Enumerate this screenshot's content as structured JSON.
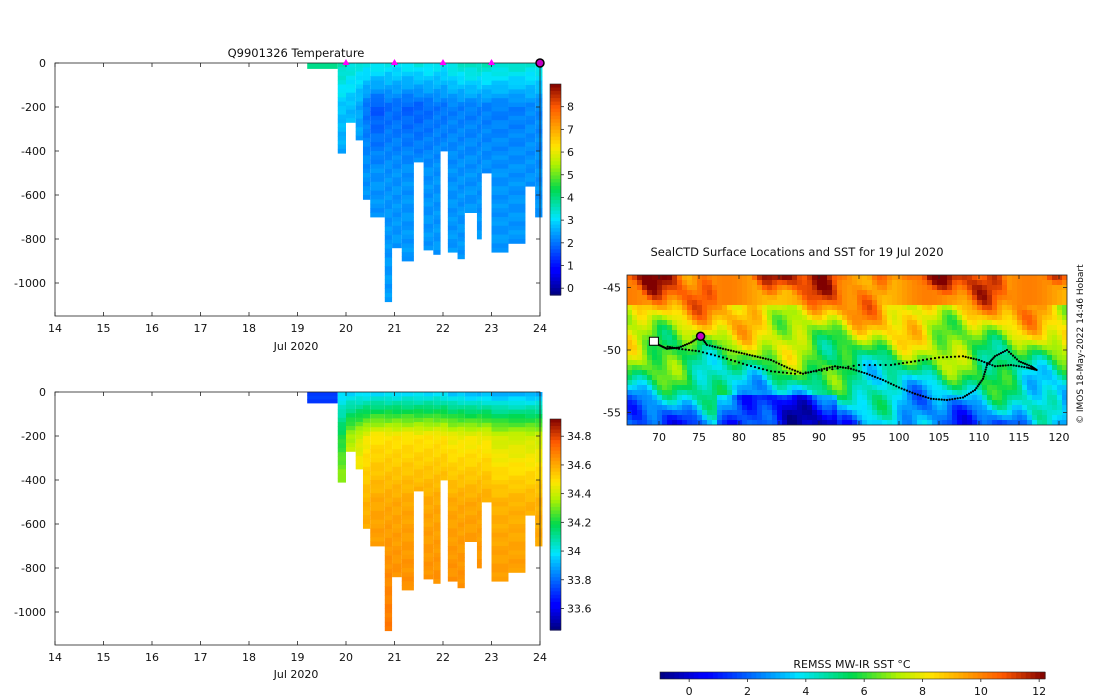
{
  "chart_data": [
    {
      "type": "heatmap",
      "title": "Q9901326  Temperature",
      "xlabel": "Jul 2020",
      "ylabel": "",
      "xlim": [
        14,
        24
      ],
      "ylim": [
        -1150,
        0
      ],
      "x_ticks": [
        14,
        15,
        16,
        17,
        18,
        19,
        20,
        21,
        22,
        23,
        24
      ],
      "y_ticks": [
        0,
        -200,
        -400,
        -600,
        -800,
        -1000
      ],
      "colorbar": {
        "range": [
          -0.3,
          9
        ],
        "ticks": [
          0,
          1,
          2,
          3,
          4,
          5,
          6,
          7,
          8
        ]
      },
      "profile_markers_x": [
        20,
        21,
        22,
        23
      ],
      "current_profile_x": 24,
      "surface_value": 3.9,
      "profiles": [
        {
          "x0": 19.2,
          "x1": 19.83,
          "depth": 25,
          "temp": [
            3.9,
            3.9,
            3.9,
            3.9
          ]
        },
        {
          "x0": 19.83,
          "x1": 20.0,
          "depth": 410,
          "temp": [
            3.6,
            2.8,
            2.4,
            2.4
          ]
        },
        {
          "x0": 20.0,
          "x1": 20.2,
          "depth": 270,
          "temp": [
            3.4,
            2.7,
            2.5,
            2.5
          ]
        },
        {
          "x0": 20.2,
          "x1": 20.35,
          "depth": 350,
          "temp": [
            3.3,
            2.5,
            2.4,
            2.4
          ]
        },
        {
          "x0": 20.35,
          "x1": 20.5,
          "depth": 620,
          "temp": [
            3.3,
            2.0,
            2.3,
            2.4
          ]
        },
        {
          "x0": 20.5,
          "x1": 20.8,
          "depth": 700,
          "temp": [
            3.3,
            1.7,
            2.3,
            2.4
          ]
        },
        {
          "x0": 20.8,
          "x1": 20.95,
          "depth": 1085,
          "temp": [
            3.2,
            1.9,
            2.3,
            2.4
          ]
        },
        {
          "x0": 20.95,
          "x1": 21.15,
          "depth": 840,
          "temp": [
            3.2,
            1.9,
            2.3,
            2.4
          ]
        },
        {
          "x0": 21.15,
          "x1": 21.4,
          "depth": 900,
          "temp": [
            3.2,
            1.8,
            2.3,
            2.4
          ]
        },
        {
          "x0": 21.4,
          "x1": 21.6,
          "depth": 450,
          "temp": [
            3.3,
            1.8,
            2.3,
            2.4
          ]
        },
        {
          "x0": 21.6,
          "x1": 21.8,
          "depth": 850,
          "temp": [
            3.3,
            1.9,
            2.3,
            2.4
          ]
        },
        {
          "x0": 21.8,
          "x1": 21.95,
          "depth": 870,
          "temp": [
            3.2,
            2.0,
            2.3,
            2.4
          ]
        },
        {
          "x0": 21.95,
          "x1": 22.1,
          "depth": 400,
          "temp": [
            3.2,
            2.0,
            2.3,
            2.4
          ]
        },
        {
          "x0": 22.1,
          "x1": 22.3,
          "depth": 860,
          "temp": [
            3.4,
            2.1,
            2.3,
            2.4
          ]
        },
        {
          "x0": 22.3,
          "x1": 22.45,
          "depth": 890,
          "temp": [
            3.5,
            2.1,
            2.3,
            2.4
          ]
        },
        {
          "x0": 22.45,
          "x1": 22.7,
          "depth": 680,
          "temp": [
            3.6,
            2.1,
            2.3,
            2.4
          ]
        },
        {
          "x0": 22.7,
          "x1": 22.8,
          "depth": 800,
          "temp": [
            3.6,
            2.1,
            2.3,
            2.4
          ]
        },
        {
          "x0": 22.8,
          "x1": 23.0,
          "depth": 500,
          "temp": [
            3.6,
            2.1,
            2.3,
            2.4
          ]
        },
        {
          "x0": 23.0,
          "x1": 23.35,
          "depth": 860,
          "temp": [
            3.5,
            2.1,
            2.3,
            2.4
          ]
        },
        {
          "x0": 23.35,
          "x1": 23.7,
          "depth": 820,
          "temp": [
            3.5,
            2.1,
            2.3,
            2.4
          ]
        },
        {
          "x0": 23.7,
          "x1": 23.9,
          "depth": 560,
          "temp": [
            3.4,
            2.2,
            2.3,
            2.4
          ]
        },
        {
          "x0": 23.9,
          "x1": 24.05,
          "depth": 700,
          "temp": [
            3.4,
            2.2,
            2.3,
            2.4
          ]
        }
      ]
    },
    {
      "type": "heatmap",
      "title": "",
      "xlabel": "Jul 2020",
      "ylabel": "",
      "xlim": [
        14,
        24
      ],
      "ylim": [
        -1150,
        0
      ],
      "x_ticks": [
        14,
        15,
        16,
        17,
        18,
        19,
        20,
        21,
        22,
        23,
        24
      ],
      "y_ticks": [
        0,
        -200,
        -400,
        -600,
        -800,
        -1000
      ],
      "colorbar": {
        "range": [
          33.45,
          34.92
        ],
        "ticks": [
          33.6,
          33.8,
          34,
          34.2,
          34.4,
          34.6,
          34.8
        ]
      },
      "surface_value": 33.83,
      "profiles": [
        {
          "x0": 19.2,
          "x1": 19.83,
          "depth": 50,
          "sal": [
            33.72,
            33.72,
            33.72,
            33.72
          ]
        },
        {
          "x0": 19.83,
          "x1": 20.0,
          "depth": 410,
          "sal": [
            33.95,
            34.2,
            34.4,
            34.4
          ]
        },
        {
          "x0": 20.0,
          "x1": 20.2,
          "depth": 270,
          "sal": [
            33.95,
            34.35,
            34.5,
            34.6
          ]
        },
        {
          "x0": 20.2,
          "x1": 20.35,
          "depth": 350,
          "sal": [
            33.95,
            34.4,
            34.55,
            34.62
          ]
        },
        {
          "x0": 20.35,
          "x1": 20.5,
          "depth": 620,
          "sal": [
            33.95,
            34.45,
            34.58,
            34.65
          ]
        },
        {
          "x0": 20.5,
          "x1": 20.8,
          "depth": 700,
          "sal": [
            33.95,
            34.48,
            34.6,
            34.68
          ]
        },
        {
          "x0": 20.8,
          "x1": 20.95,
          "depth": 1085,
          "sal": [
            33.95,
            34.48,
            34.6,
            34.7
          ]
        },
        {
          "x0": 20.95,
          "x1": 21.15,
          "depth": 840,
          "sal": [
            33.95,
            34.48,
            34.6,
            34.68
          ]
        },
        {
          "x0": 21.15,
          "x1": 21.4,
          "depth": 900,
          "sal": [
            33.95,
            34.48,
            34.6,
            34.68
          ]
        },
        {
          "x0": 21.4,
          "x1": 21.6,
          "depth": 450,
          "sal": [
            33.95,
            34.48,
            34.6,
            34.68
          ]
        },
        {
          "x0": 21.6,
          "x1": 21.8,
          "depth": 850,
          "sal": [
            33.95,
            34.48,
            34.6,
            34.68
          ]
        },
        {
          "x0": 21.8,
          "x1": 21.95,
          "depth": 870,
          "sal": [
            33.95,
            34.48,
            34.6,
            34.68
          ]
        },
        {
          "x0": 21.95,
          "x1": 22.1,
          "depth": 400,
          "sal": [
            33.95,
            34.48,
            34.6,
            34.68
          ]
        },
        {
          "x0": 22.1,
          "x1": 22.3,
          "depth": 860,
          "sal": [
            33.92,
            34.45,
            34.6,
            34.68
          ]
        },
        {
          "x0": 22.3,
          "x1": 22.45,
          "depth": 890,
          "sal": [
            33.92,
            34.45,
            34.6,
            34.68
          ]
        },
        {
          "x0": 22.45,
          "x1": 22.7,
          "depth": 680,
          "sal": [
            33.9,
            34.45,
            34.6,
            34.68
          ]
        },
        {
          "x0": 22.7,
          "x1": 22.8,
          "depth": 800,
          "sal": [
            33.9,
            34.45,
            34.6,
            34.68
          ]
        },
        {
          "x0": 22.8,
          "x1": 23.0,
          "depth": 500,
          "sal": [
            33.9,
            34.45,
            34.6,
            34.68
          ]
        },
        {
          "x0": 23.0,
          "x1": 23.35,
          "depth": 860,
          "sal": [
            33.88,
            34.4,
            34.58,
            34.66
          ]
        },
        {
          "x0": 23.35,
          "x1": 23.7,
          "depth": 820,
          "sal": [
            33.88,
            34.4,
            34.58,
            34.66
          ]
        },
        {
          "x0": 23.7,
          "x1": 23.9,
          "depth": 560,
          "sal": [
            33.88,
            34.4,
            34.58,
            34.66
          ]
        },
        {
          "x0": 23.9,
          "x1": 24.05,
          "depth": 700,
          "sal": [
            33.88,
            34.4,
            34.58,
            34.66
          ]
        }
      ]
    },
    {
      "type": "heatmap",
      "title": "SealCTD Surface Locations and SST for 19 Jul 2020",
      "xlabel": "",
      "ylabel": "",
      "xlim": [
        66,
        121
      ],
      "ylim": [
        -56,
        -44
      ],
      "x_ticks": [
        70,
        75,
        80,
        85,
        90,
        95,
        100,
        105,
        110,
        115,
        120
      ],
      "y_ticks": [
        -45,
        -50,
        -55
      ],
      "colorbar": {
        "label": "REMSS MW-IR SST °C",
        "range": [
          -1,
          12.2
        ],
        "ticks": [
          0,
          2,
          4,
          6,
          8,
          10,
          12
        ]
      },
      "copyright": "© IMOS 18-May-2022 14:46 Hobart",
      "track": [
        [
          69.3,
          -49.2
        ],
        [
          70,
          -49.6
        ],
        [
          71,
          -49.9
        ],
        [
          72.5,
          -49.8
        ],
        [
          74,
          -49.4
        ],
        [
          75.2,
          -48.9
        ],
        [
          76,
          -49.6
        ],
        [
          78,
          -49.9
        ],
        [
          80,
          -50.2
        ],
        [
          82,
          -50.5
        ],
        [
          84,
          -50.8
        ],
        [
          86,
          -51.4
        ],
        [
          88,
          -51.9
        ],
        [
          90,
          -51.6
        ],
        [
          92,
          -51.3
        ],
        [
          94,
          -51.5
        ],
        [
          96,
          -51.9
        ],
        [
          98,
          -52.4
        ],
        [
          100,
          -53.0
        ],
        [
          102,
          -53.5
        ],
        [
          104,
          -53.9
        ],
        [
          106,
          -54.0
        ],
        [
          108,
          -53.8
        ],
        [
          109.5,
          -53.2
        ],
        [
          110.5,
          -52.3
        ],
        [
          111,
          -51.2
        ],
        [
          112,
          -50.5
        ],
        [
          113.5,
          -50.0
        ],
        [
          115,
          -50.9
        ],
        [
          116.5,
          -51.3
        ],
        [
          117.2,
          -51.6
        ],
        [
          116,
          -51.4
        ],
        [
          114,
          -51.2
        ],
        [
          112,
          -51.3
        ],
        [
          110,
          -50.8
        ],
        [
          108,
          -50.5
        ],
        [
          105,
          -50.6
        ],
        [
          102,
          -50.9
        ],
        [
          99,
          -51.2
        ],
        [
          95,
          -51.2
        ],
        [
          91,
          -51.6
        ],
        [
          87,
          -51.9
        ],
        [
          84,
          -51.7
        ],
        [
          81,
          -51.2
        ],
        [
          78,
          -50.6
        ],
        [
          75,
          -50.1
        ],
        [
          72.5,
          -49.9
        ],
        [
          70.8,
          -49.7
        ]
      ],
      "current_position": [
        75.2,
        -48.9
      ],
      "kerguelen_position": [
        69.3,
        -49.3
      ]
    }
  ]
}
